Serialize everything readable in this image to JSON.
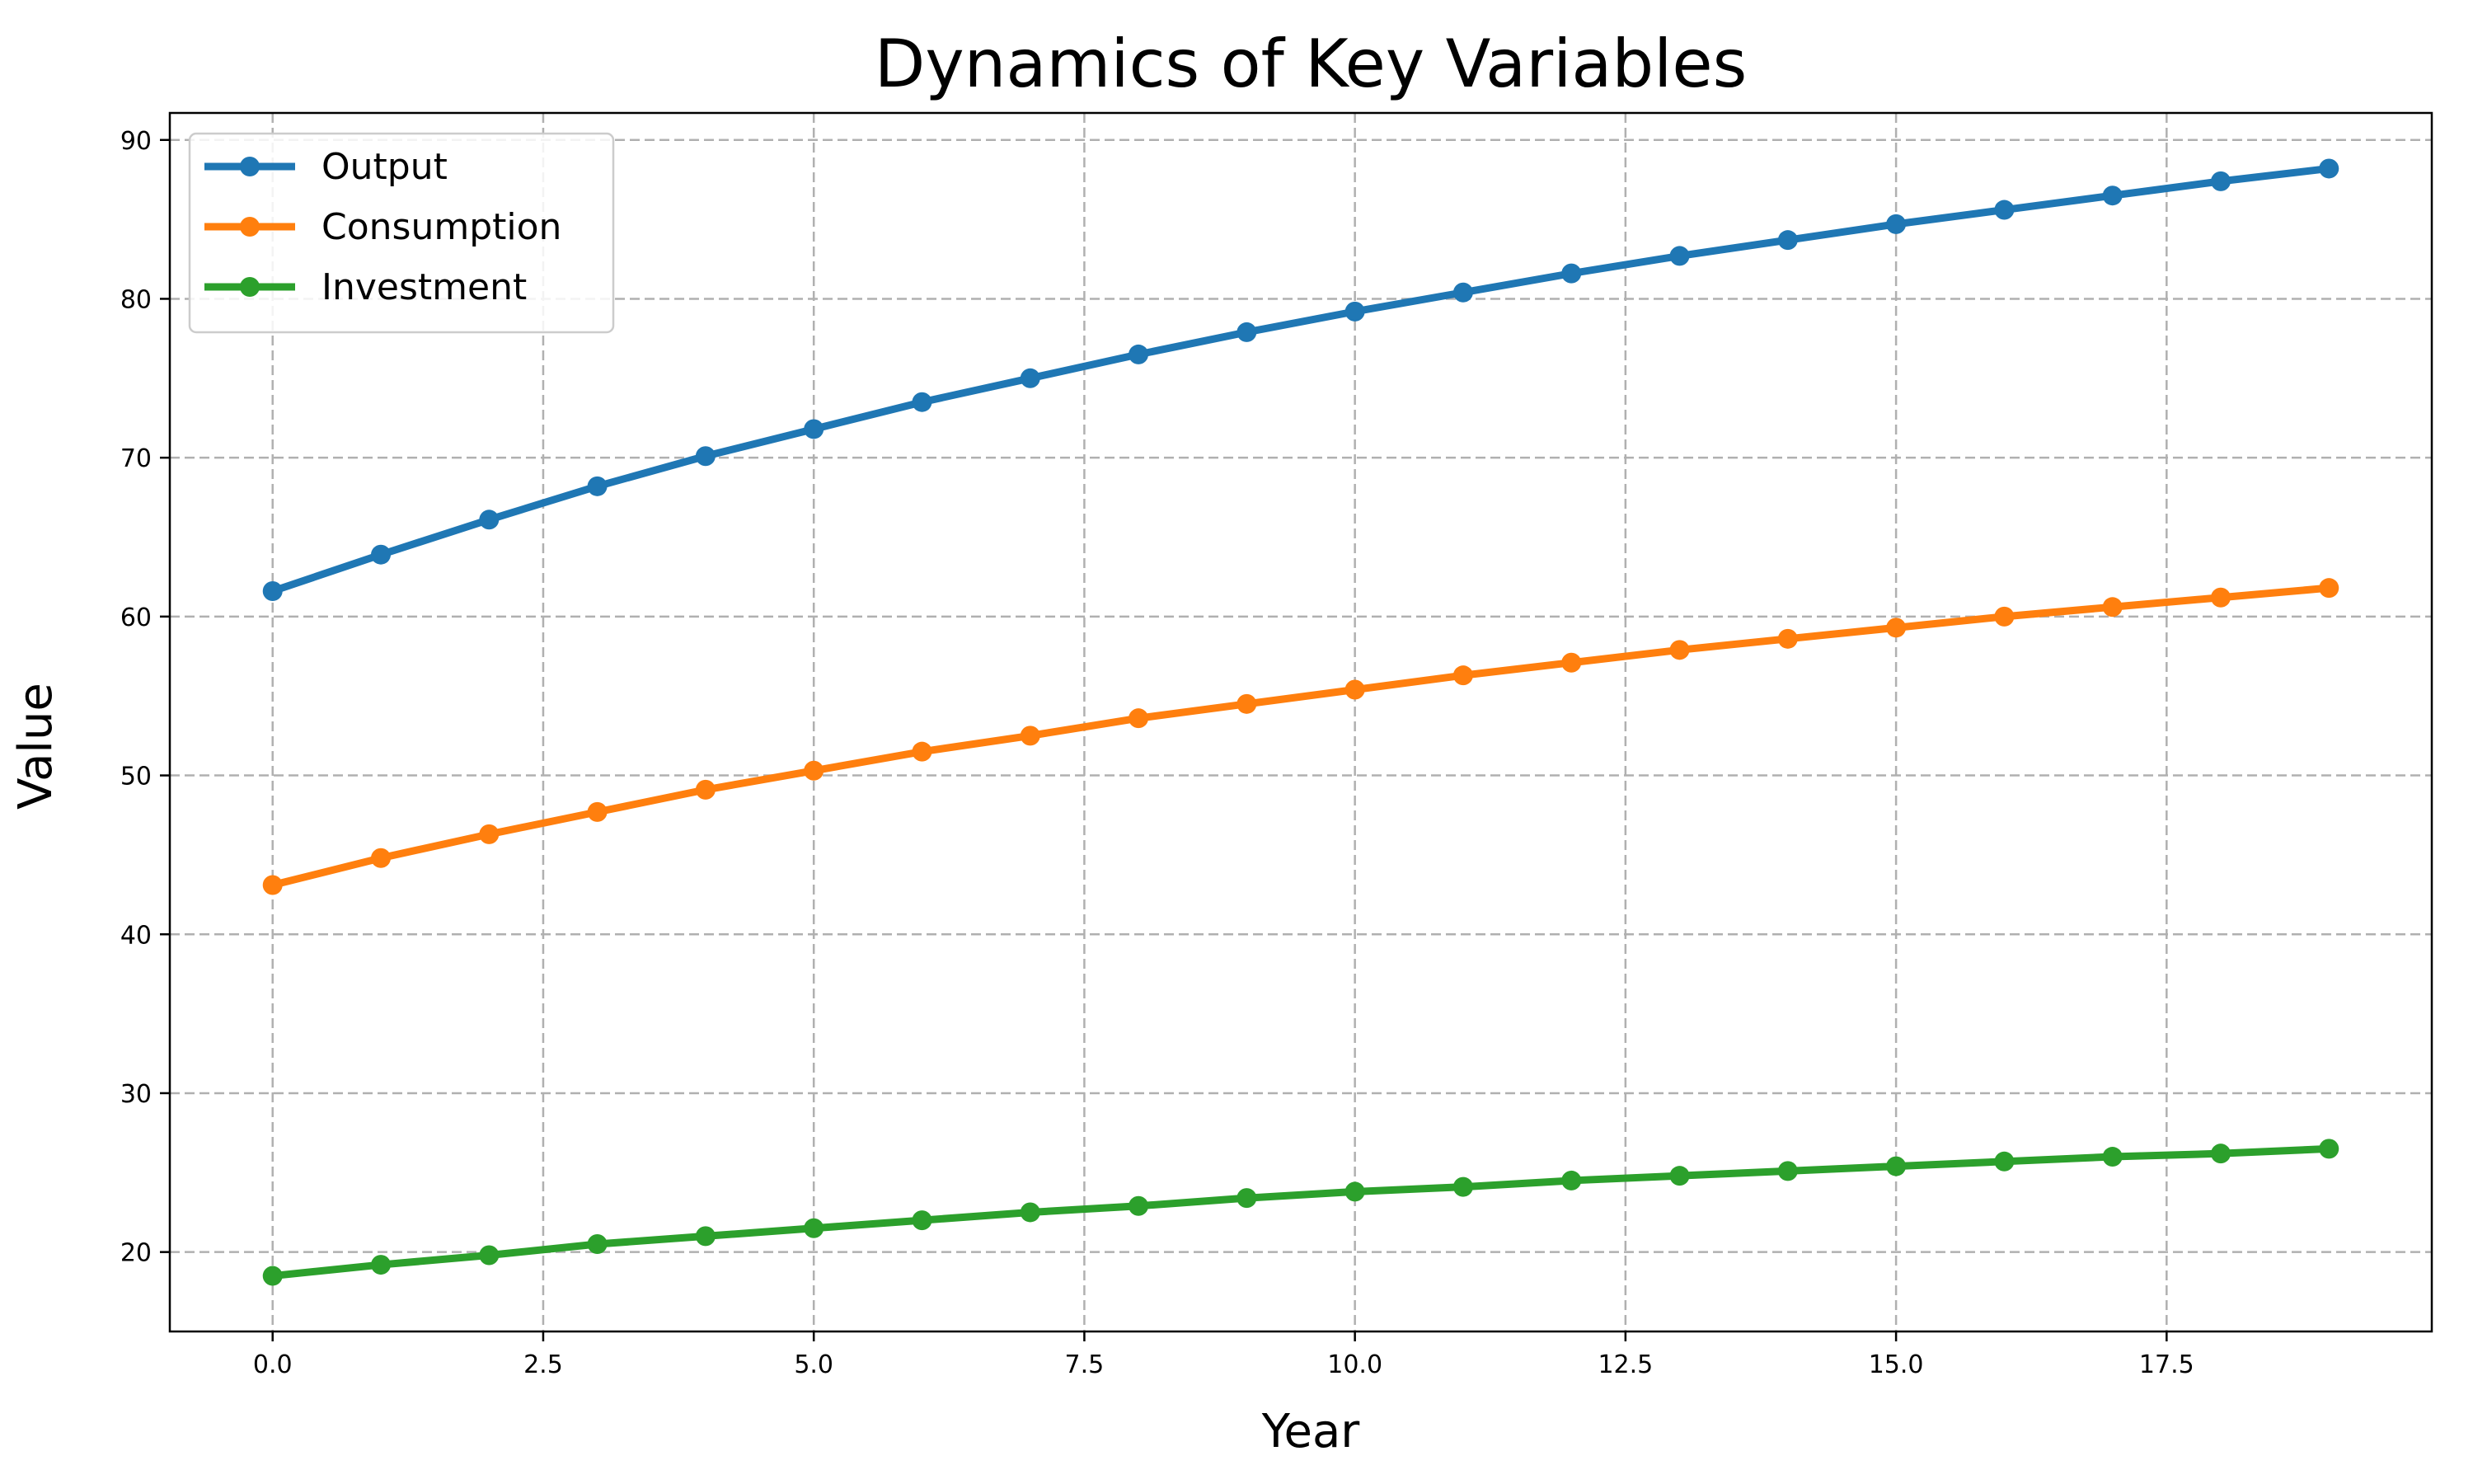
{
  "chart_data": {
    "type": "line",
    "title": "Dynamics of Key Variables",
    "xlabel": "Year",
    "ylabel": "Value",
    "xlim": [
      -0.95,
      19.95
    ],
    "ylim": [
      15,
      91.7
    ],
    "xticks": [
      0.0,
      2.5,
      5.0,
      7.5,
      10.0,
      12.5,
      15.0,
      17.5
    ],
    "xtick_labels": [
      "0.0",
      "2.5",
      "5.0",
      "7.5",
      "10.0",
      "12.5",
      "15.0",
      "17.5"
    ],
    "yticks": [
      20,
      30,
      40,
      50,
      60,
      70,
      80,
      90
    ],
    "ytick_labels": [
      "20",
      "30",
      "40",
      "50",
      "60",
      "70",
      "80",
      "90"
    ],
    "grid": true,
    "legend_position": "top-left",
    "x": [
      0,
      1,
      2,
      3,
      4,
      5,
      6,
      7,
      8,
      9,
      10,
      11,
      12,
      13,
      14,
      15,
      16,
      17,
      18,
      19
    ],
    "series": [
      {
        "name": "Output",
        "color": "#1f77b4",
        "values": [
          61.6,
          63.9,
          66.1,
          68.2,
          70.1,
          71.8,
          73.5,
          75.0,
          76.5,
          77.9,
          79.2,
          80.4,
          81.6,
          82.7,
          83.7,
          84.7,
          85.6,
          86.5,
          87.4,
          88.2
        ]
      },
      {
        "name": "Consumption",
        "color": "#ff7f0e",
        "values": [
          43.1,
          44.8,
          46.3,
          47.7,
          49.1,
          50.3,
          51.5,
          52.5,
          53.6,
          54.5,
          55.4,
          56.3,
          57.1,
          57.9,
          58.6,
          59.3,
          60.0,
          60.6,
          61.2,
          61.8
        ]
      },
      {
        "name": "Investment",
        "color": "#2ca02c",
        "values": [
          18.5,
          19.2,
          19.8,
          20.5,
          21.0,
          21.5,
          22.0,
          22.5,
          22.9,
          23.4,
          23.8,
          24.1,
          24.5,
          24.8,
          25.1,
          25.4,
          25.7,
          26.0,
          26.2,
          26.5
        ]
      }
    ]
  }
}
